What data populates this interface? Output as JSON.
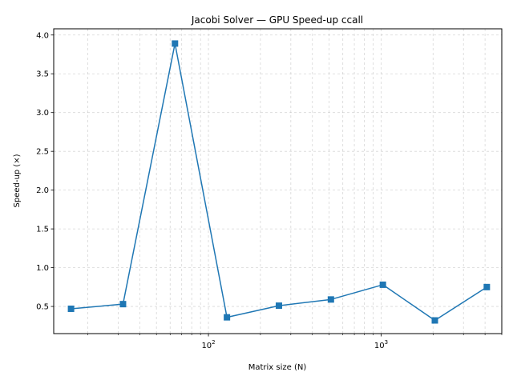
{
  "chart_data": {
    "type": "line",
    "title": "Jacobi Solver — GPU Speed-up ccall",
    "xlabel": "Matrix size (N)",
    "ylabel": "Speed-up (×)",
    "xscale": "log",
    "xlim": [
      12.7,
      5000
    ],
    "ylim": [
      0.15,
      4.08
    ],
    "grid": true,
    "grid_style": "dashed",
    "marker": "square",
    "line_color": "#1f77b4",
    "x_ticks": [
      {
        "value": 100,
        "base": "10",
        "exp": "2"
      },
      {
        "value": 1000,
        "base": "10",
        "exp": "3"
      }
    ],
    "y_ticks": [
      {
        "value": 0.5,
        "label": "0.5"
      },
      {
        "value": 1.0,
        "label": "1.0"
      },
      {
        "value": 1.5,
        "label": "1.5"
      },
      {
        "value": 2.0,
        "label": "2.0"
      },
      {
        "value": 2.5,
        "label": "2.5"
      },
      {
        "value": 3.0,
        "label": "3.0"
      },
      {
        "value": 3.5,
        "label": "3.5"
      },
      {
        "value": 4.0,
        "label": "4.0"
      }
    ],
    "x": [
      16,
      32,
      64,
      128,
      256,
      512,
      1024,
      2048,
      4096
    ],
    "y": [
      0.47,
      0.53,
      3.89,
      0.36,
      0.51,
      0.59,
      0.78,
      0.32,
      0.75
    ]
  }
}
